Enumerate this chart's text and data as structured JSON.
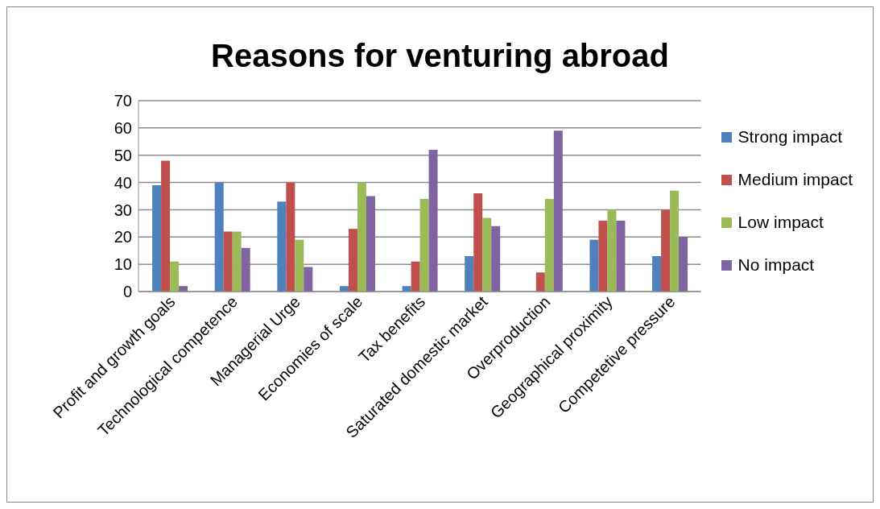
{
  "chart_data": {
    "type": "bar",
    "title": "Reasons for venturing abroad",
    "categories": [
      "Profit and growth goals",
      "Technological competence",
      "Managerial Urge",
      "Economies of scale",
      "Tax benefits",
      "Saturated domestic market",
      "Overproduction",
      "Geographical proximity",
      "Competetive pressure"
    ],
    "series": [
      {
        "name": "Strong impact",
        "color": "#4f81bd",
        "values": [
          39,
          40,
          33,
          2,
          2,
          13,
          0,
          19,
          13
        ]
      },
      {
        "name": "Medium impact",
        "color": "#c0504d",
        "values": [
          48,
          22,
          40,
          23,
          11,
          36,
          7,
          26,
          30
        ]
      },
      {
        "name": "Low impact",
        "color": "#9bbb59",
        "values": [
          11,
          22,
          19,
          40,
          34,
          27,
          34,
          30,
          37
        ]
      },
      {
        "name": "No impact",
        "color": "#8064a2",
        "values": [
          2,
          16,
          9,
          35,
          52,
          24,
          59,
          26,
          20
        ]
      }
    ],
    "ylim": [
      0,
      70
    ],
    "yticks": [
      0,
      10,
      20,
      30,
      40,
      50,
      60,
      70
    ],
    "grid": "y",
    "legend": "right"
  }
}
